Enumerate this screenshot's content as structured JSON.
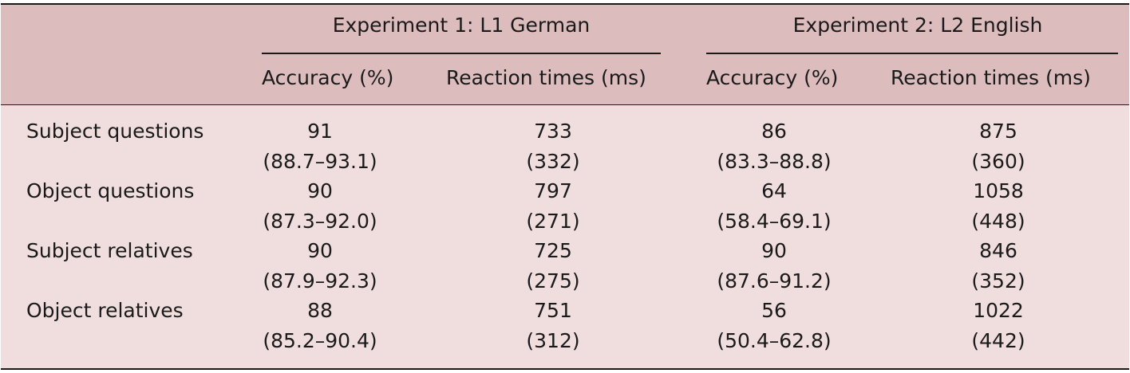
{
  "table": {
    "groups": [
      "Experiment 1: L1 German",
      "Experiment 2: L2 English"
    ],
    "columns": [
      "Accuracy (%)",
      "Reaction times (ms)",
      "Accuracy (%)",
      "Reaction times (ms)"
    ],
    "rows": [
      {
        "label": "Subject questions",
        "values": [
          "91",
          "733",
          "86",
          "875"
        ],
        "spread": [
          "(88.7–93.1)",
          "(332)",
          "(83.3–88.8)",
          "(360)"
        ]
      },
      {
        "label": "Object questions",
        "values": [
          "90",
          "797",
          "64",
          "1058"
        ],
        "spread": [
          "(87.3–92.0)",
          "(271)",
          "(58.4–69.1)",
          "(448)"
        ]
      },
      {
        "label": "Subject relatives",
        "values": [
          "90",
          "725",
          "90",
          "846"
        ],
        "spread": [
          "(87.9–92.3)",
          "(275)",
          "(87.6–91.2)",
          "(352)"
        ]
      },
      {
        "label": "Object relatives",
        "values": [
          "88",
          "751",
          "56",
          "1022"
        ],
        "spread": [
          "(85.2–90.4)",
          "(312)",
          "(50.4–62.8)",
          "(442)"
        ]
      }
    ]
  }
}
